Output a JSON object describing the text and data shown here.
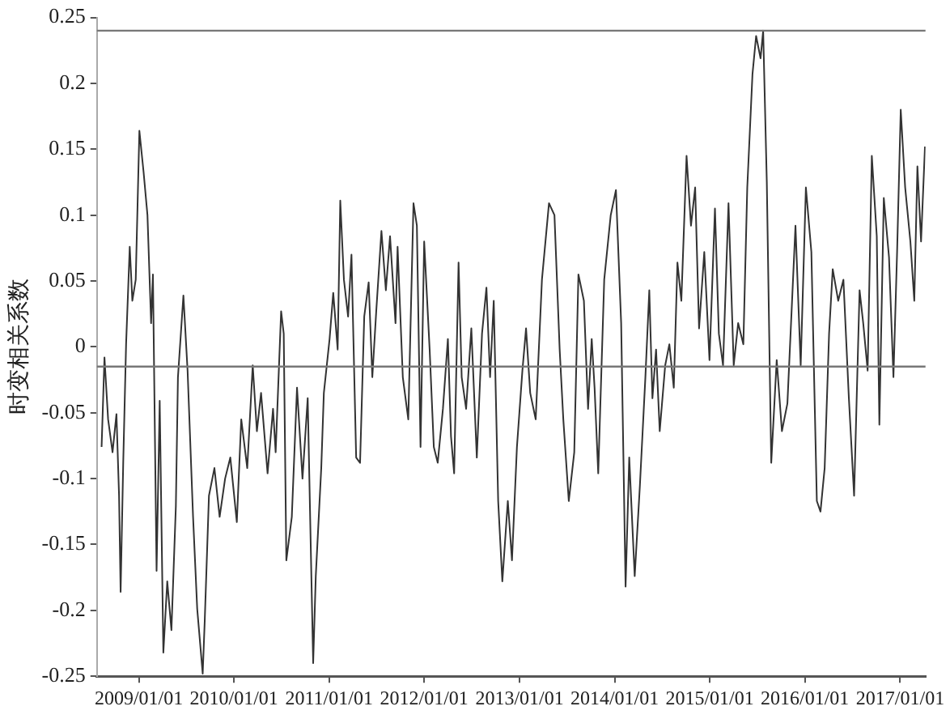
{
  "chart_data": {
    "type": "line",
    "ylabel": "时变相关系数",
    "x": [
      "2008-08-11",
      "2008-08-22",
      "2008-09-05",
      "2008-09-22",
      "2008-10-07",
      "2008-10-17",
      "2008-10-23",
      "2008-11-02",
      "2008-11-13",
      "2008-11-27",
      "2008-12-07",
      "2008-12-20",
      "2009-01-03",
      "2009-01-19",
      "2009-02-03",
      "2009-02-17",
      "2009-02-24",
      "2009-03-10",
      "2009-03-22",
      "2009-04-05",
      "2009-04-20",
      "2009-05-06",
      "2009-05-23",
      "2009-05-31",
      "2009-06-21",
      "2009-07-07",
      "2009-07-28",
      "2009-08-13",
      "2009-09-03",
      "2009-09-11",
      "2009-09-27",
      "2009-10-18",
      "2009-11-07",
      "2009-11-28",
      "2009-12-18",
      "2010-01-12",
      "2010-01-29",
      "2010-02-21",
      "2010-03-14",
      "2010-03-30",
      "2010-04-15",
      "2010-05-10",
      "2010-05-31",
      "2010-06-10",
      "2010-07-01",
      "2010-07-11",
      "2010-07-21",
      "2010-08-11",
      "2010-08-31",
      "2010-09-21",
      "2010-10-11",
      "2010-11-01",
      "2010-11-11",
      "2010-12-02",
      "2010-12-12",
      "2011-01-03",
      "2011-01-17",
      "2011-02-03",
      "2011-02-13",
      "2011-02-27",
      "2011-03-15",
      "2011-03-28",
      "2011-04-15",
      "2011-04-30",
      "2011-05-16",
      "2011-06-02",
      "2011-06-16",
      "2011-07-01",
      "2011-07-21",
      "2011-08-07",
      "2011-08-23",
      "2011-09-13",
      "2011-09-21",
      "2011-10-11",
      "2011-11-01",
      "2011-11-21",
      "2011-12-04",
      "2011-12-18",
      "2012-01-01",
      "2012-01-22",
      "2012-02-07",
      "2012-02-22",
      "2012-03-13",
      "2012-04-01",
      "2012-04-13",
      "2012-04-25",
      "2012-05-12",
      "2012-05-24",
      "2012-06-10",
      "2012-06-30",
      "2012-07-21",
      "2012-08-10",
      "2012-08-27",
      "2012-09-10",
      "2012-09-24",
      "2012-10-11",
      "2012-10-27",
      "2012-11-17",
      "2012-12-03",
      "2012-12-22",
      "2013-01-12",
      "2013-01-26",
      "2013-02-11",
      "2013-03-04",
      "2013-03-28",
      "2013-04-24",
      "2013-05-15",
      "2013-06-04",
      "2013-06-18",
      "2013-07-09",
      "2013-07-30",
      "2013-08-15",
      "2013-09-05",
      "2013-09-21",
      "2013-10-05",
      "2013-10-16",
      "2013-10-30",
      "2013-11-22",
      "2013-12-17",
      "2014-01-06",
      "2014-01-26",
      "2014-02-12",
      "2014-02-26",
      "2014-03-19",
      "2014-04-08",
      "2014-04-29",
      "2014-05-14",
      "2014-05-26",
      "2014-06-09",
      "2014-06-23",
      "2014-07-14",
      "2014-07-30",
      "2014-08-16",
      "2014-08-30",
      "2014-09-14",
      "2014-10-04",
      "2014-10-21",
      "2014-11-06",
      "2014-11-21",
      "2014-12-11",
      "2014-12-31",
      "2015-01-21",
      "2015-02-05",
      "2015-02-21",
      "2015-03-14",
      "2015-04-03",
      "2015-04-20",
      "2015-05-10",
      "2015-05-25",
      "2015-06-14",
      "2015-06-28",
      "2015-07-15",
      "2015-07-25",
      "2015-08-08",
      "2015-08-25",
      "2015-09-15",
      "2015-10-05",
      "2015-10-26",
      "2015-11-26",
      "2015-12-16",
      "2016-01-05",
      "2016-01-26",
      "2016-02-16",
      "2016-03-01",
      "2016-03-17",
      "2016-04-03",
      "2016-04-17",
      "2016-05-08",
      "2016-05-28",
      "2016-06-18",
      "2016-07-08",
      "2016-07-29",
      "2016-08-12",
      "2016-08-29",
      "2016-09-14",
      "2016-10-03",
      "2016-10-13",
      "2016-10-30",
      "2016-11-19",
      "2016-12-06",
      "2016-12-20",
      "2017-01-03",
      "2017-01-20",
      "2017-02-09",
      "2017-02-24",
      "2017-03-08",
      "2017-03-22",
      "2017-04-06"
    ],
    "series": [
      {
        "color": "#333333",
        "values": [
          -0.076,
          -0.008,
          -0.055,
          -0.08,
          -0.051,
          -0.113,
          -0.186,
          -0.088,
          0.002,
          0.076,
          0.035,
          0.051,
          0.164,
          0.133,
          0.1,
          0.018,
          0.055,
          -0.17,
          -0.041,
          -0.232,
          -0.178,
          -0.215,
          -0.121,
          -0.023,
          0.039,
          -0.018,
          -0.129,
          -0.199,
          -0.248,
          -0.207,
          -0.113,
          -0.092,
          -0.129,
          -0.1,
          -0.084,
          -0.133,
          -0.055,
          -0.092,
          -0.014,
          -0.064,
          -0.035,
          -0.096,
          -0.047,
          -0.08,
          0.027,
          0.01,
          -0.162,
          -0.129,
          -0.031,
          -0.1,
          -0.039,
          -0.24,
          -0.174,
          -0.092,
          -0.035,
          0.006,
          0.041,
          -0.002,
          0.111,
          0.051,
          0.023,
          0.07,
          -0.084,
          -0.088,
          0.023,
          0.049,
          -0.023,
          0.027,
          0.088,
          0.043,
          0.084,
          0.018,
          0.076,
          -0.023,
          -0.055,
          0.109,
          0.092,
          -0.076,
          0.08,
          -0.002,
          -0.076,
          -0.088,
          -0.047,
          0.006,
          -0.068,
          -0.096,
          0.064,
          -0.023,
          -0.047,
          0.014,
          -0.084,
          0.01,
          0.045,
          -0.023,
          0.035,
          -0.117,
          -0.178,
          -0.117,
          -0.162,
          -0.076,
          -0.018,
          0.014,
          -0.035,
          -0.055,
          0.051,
          0.109,
          0.1,
          -0.002,
          -0.055,
          -0.117,
          -0.08,
          0.055,
          0.035,
          -0.047,
          0.006,
          -0.031,
          -0.096,
          0.051,
          0.1,
          0.119,
          0.018,
          -0.182,
          -0.084,
          -0.174,
          -0.105,
          -0.023,
          0.043,
          -0.039,
          -0.002,
          -0.064,
          -0.014,
          0.002,
          -0.031,
          0.064,
          0.035,
          0.145,
          0.092,
          0.121,
          0.014,
          0.072,
          -0.01,
          0.105,
          0.01,
          -0.014,
          0.109,
          -0.014,
          0.018,
          0.002,
          0.121,
          0.207,
          0.236,
          0.219,
          0.24,
          0.125,
          -0.088,
          -0.01,
          -0.064,
          -0.043,
          0.092,
          -0.014,
          0.121,
          0.072,
          -0.117,
          -0.125,
          -0.092,
          0.01,
          0.059,
          0.035,
          0.051,
          -0.039,
          -0.113,
          0.043,
          0.018,
          -0.018,
          0.145,
          0.084,
          -0.059,
          0.113,
          0.068,
          -0.023,
          0.072,
          0.18,
          0.121,
          0.08,
          0.035,
          0.137,
          0.08,
          0.152
        ]
      }
    ],
    "xlim": [
      "2008-07-24",
      "2017-04-08"
    ],
    "xticks": [
      {
        "value": "2009-01-01",
        "label": "2009/01/01"
      },
      {
        "value": "2010-01-01",
        "label": "2010/01/01"
      },
      {
        "value": "2011-01-01",
        "label": "2011/01/01"
      },
      {
        "value": "2012-01-01",
        "label": "2012/01/01"
      },
      {
        "value": "2013-01-01",
        "label": "2013/01/01"
      },
      {
        "value": "2014-01-01",
        "label": "2014/01/01"
      },
      {
        "value": "2015-01-01",
        "label": "2015/01/01"
      },
      {
        "value": "2016-01-01",
        "label": "2016/01/01"
      },
      {
        "value": "2017-01-01",
        "label": "2017/01/01"
      }
    ],
    "ylim": [
      -0.25,
      0.25
    ],
    "yticks": [
      -0.25,
      -0.2,
      -0.15,
      -0.1,
      -0.05,
      0,
      0.05,
      0.1,
      0.15,
      0.2,
      0.25
    ],
    "ref_lines": [
      {
        "axis": "y",
        "value": 0.24,
        "color": "#777777"
      },
      {
        "axis": "y",
        "value": -0.015,
        "color": "#777777"
      }
    ],
    "marker": "none",
    "line_style": "solid",
    "grid": false,
    "legend": false
  }
}
